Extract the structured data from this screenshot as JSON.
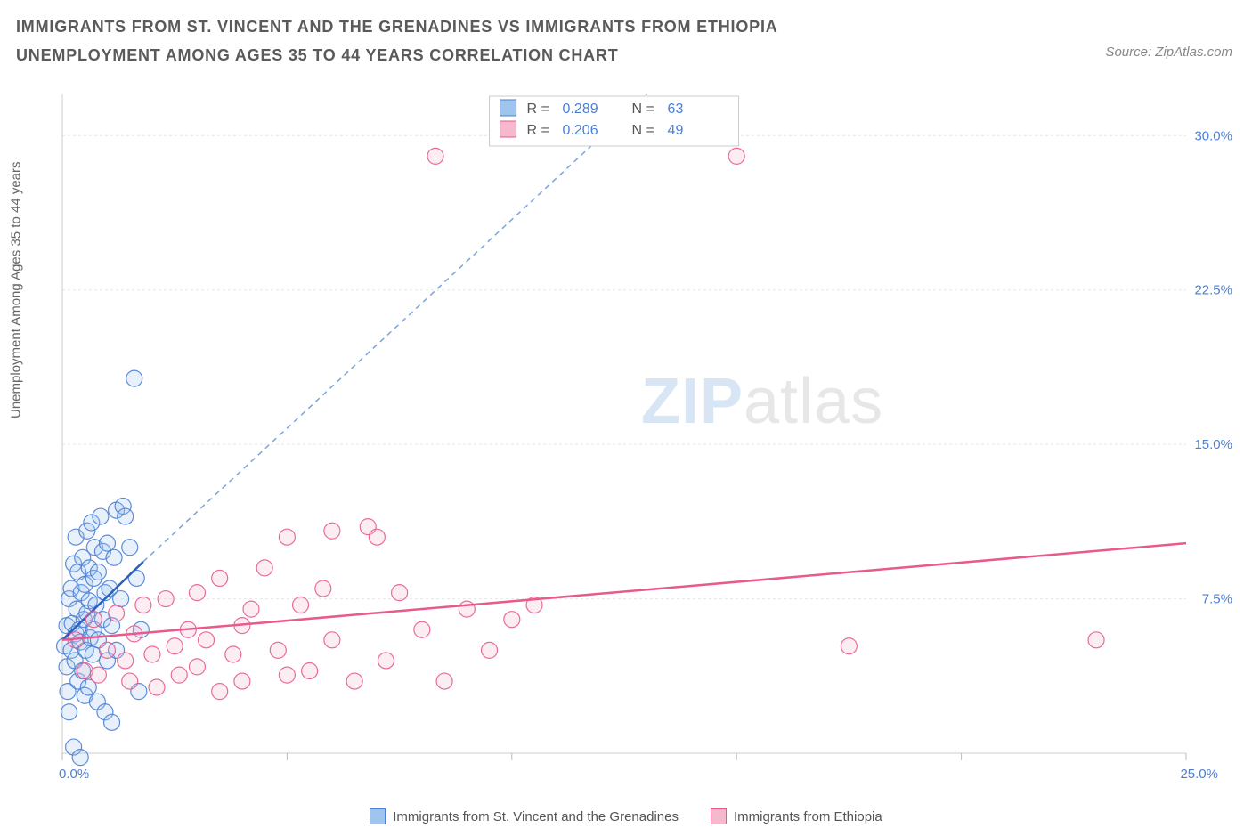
{
  "title": "IMMIGRANTS FROM ST. VINCENT AND THE GRENADINES VS IMMIGRANTS FROM ETHIOPIA UNEMPLOYMENT AMONG AGES 35 TO 44 YEARS CORRELATION CHART",
  "source": "Source: ZipAtlas.com",
  "y_axis_label": "Unemployment Among Ages 35 to 44 years",
  "watermark_a": "ZIP",
  "watermark_b": "atlas",
  "chart": {
    "type": "scatter",
    "background_color": "#ffffff",
    "grid_color": "#e6e6e6",
    "axis_color": "#cccccc",
    "tick_color": "#bbbbbb",
    "tick_label_color": "#4a7fd6",
    "tick_fontsize": 15,
    "xlim": [
      0,
      25
    ],
    "ylim": [
      0,
      32
    ],
    "x_ticks": [
      0,
      5,
      10,
      15,
      20,
      25
    ],
    "x_tick_labels": [
      "0.0%",
      "",
      "",
      "",
      "",
      "25.0%"
    ],
    "y_ticks": [
      7.5,
      15.0,
      22.5,
      30.0
    ],
    "y_tick_labels": [
      "7.5%",
      "15.0%",
      "22.5%",
      "30.0%"
    ],
    "marker_radius": 9,
    "marker_fill_opacity": 0.25,
    "marker_stroke_opacity": 0.9,
    "marker_stroke_width": 1.2,
    "series": [
      {
        "name": "Immigrants from St. Vincent and the Grenadines",
        "color_fill": "#9fc4ee",
        "color_stroke": "#4a7fd6",
        "trend_color": "#2b5fc0",
        "trend_dash_color": "#7ba3dd",
        "R": 0.289,
        "N": 63,
        "trend_solid": {
          "x1": 0.0,
          "y1": 5.5,
          "x2": 1.8,
          "y2": 9.3
        },
        "trend_dash": {
          "x1": 1.8,
          "y1": 9.3,
          "x2": 13.0,
          "y2": 32.0
        },
        "points": [
          [
            0.05,
            5.2
          ],
          [
            0.1,
            4.2
          ],
          [
            0.1,
            6.2
          ],
          [
            0.12,
            3.0
          ],
          [
            0.15,
            7.5
          ],
          [
            0.15,
            2.0
          ],
          [
            0.2,
            5.0
          ],
          [
            0.2,
            8.0
          ],
          [
            0.22,
            6.3
          ],
          [
            0.25,
            0.3
          ],
          [
            0.25,
            9.2
          ],
          [
            0.28,
            4.5
          ],
          [
            0.3,
            5.8
          ],
          [
            0.3,
            10.5
          ],
          [
            0.32,
            7.0
          ],
          [
            0.35,
            3.5
          ],
          [
            0.35,
            8.8
          ],
          [
            0.38,
            6.0
          ],
          [
            0.4,
            -0.2
          ],
          [
            0.4,
            5.4
          ],
          [
            0.42,
            7.8
          ],
          [
            0.45,
            4.0
          ],
          [
            0.45,
            9.5
          ],
          [
            0.48,
            6.5
          ],
          [
            0.5,
            2.8
          ],
          [
            0.5,
            8.2
          ],
          [
            0.52,
            5.0
          ],
          [
            0.55,
            10.8
          ],
          [
            0.55,
            6.8
          ],
          [
            0.58,
            3.2
          ],
          [
            0.6,
            7.4
          ],
          [
            0.6,
            9.0
          ],
          [
            0.62,
            5.6
          ],
          [
            0.65,
            11.2
          ],
          [
            0.68,
            4.8
          ],
          [
            0.7,
            8.5
          ],
          [
            0.7,
            6.0
          ],
          [
            0.72,
            10.0
          ],
          [
            0.75,
            7.2
          ],
          [
            0.78,
            2.5
          ],
          [
            0.8,
            8.8
          ],
          [
            0.8,
            5.5
          ],
          [
            0.85,
            11.5
          ],
          [
            0.9,
            6.5
          ],
          [
            0.9,
            9.8
          ],
          [
            0.95,
            2.0
          ],
          [
            0.95,
            7.8
          ],
          [
            1.0,
            10.2
          ],
          [
            1.0,
            4.5
          ],
          [
            1.05,
            8.0
          ],
          [
            1.1,
            1.5
          ],
          [
            1.1,
            6.2
          ],
          [
            1.15,
            9.5
          ],
          [
            1.2,
            11.8
          ],
          [
            1.2,
            5.0
          ],
          [
            1.3,
            7.5
          ],
          [
            1.35,
            12.0
          ],
          [
            1.4,
            11.5
          ],
          [
            1.5,
            10.0
          ],
          [
            1.6,
            18.2
          ],
          [
            1.65,
            8.5
          ],
          [
            1.7,
            3.0
          ],
          [
            1.75,
            6.0
          ]
        ]
      },
      {
        "name": "Immigrants from Ethiopia",
        "color_fill": "#f5b8cc",
        "color_stroke": "#e85a8e",
        "trend_color": "#e85a8e",
        "R": 0.206,
        "N": 49,
        "trend_solid": {
          "x1": 0.0,
          "y1": 5.5,
          "x2": 25.0,
          "y2": 10.2
        },
        "points": [
          [
            0.3,
            5.5
          ],
          [
            0.5,
            4.0
          ],
          [
            0.7,
            6.5
          ],
          [
            0.8,
            3.8
          ],
          [
            1.0,
            5.0
          ],
          [
            1.2,
            6.8
          ],
          [
            1.4,
            4.5
          ],
          [
            1.5,
            3.5
          ],
          [
            1.6,
            5.8
          ],
          [
            1.8,
            7.2
          ],
          [
            2.0,
            4.8
          ],
          [
            2.1,
            3.2
          ],
          [
            2.3,
            7.5
          ],
          [
            2.5,
            5.2
          ],
          [
            2.6,
            3.8
          ],
          [
            2.8,
            6.0
          ],
          [
            3.0,
            4.2
          ],
          [
            3.0,
            7.8
          ],
          [
            3.2,
            5.5
          ],
          [
            3.5,
            3.0
          ],
          [
            3.5,
            8.5
          ],
          [
            3.8,
            4.8
          ],
          [
            4.0,
            6.2
          ],
          [
            4.0,
            3.5
          ],
          [
            4.2,
            7.0
          ],
          [
            4.5,
            9.0
          ],
          [
            4.8,
            5.0
          ],
          [
            5.0,
            3.8
          ],
          [
            5.0,
            10.5
          ],
          [
            5.3,
            7.2
          ],
          [
            5.5,
            4.0
          ],
          [
            5.8,
            8.0
          ],
          [
            6.0,
            5.5
          ],
          [
            6.0,
            10.8
          ],
          [
            6.5,
            3.5
          ],
          [
            6.8,
            11.0
          ],
          [
            7.0,
            10.5
          ],
          [
            7.2,
            4.5
          ],
          [
            7.5,
            7.8
          ],
          [
            8.0,
            6.0
          ],
          [
            8.3,
            29.0
          ],
          [
            8.5,
            3.5
          ],
          [
            9.0,
            7.0
          ],
          [
            9.5,
            5.0
          ],
          [
            10.0,
            6.5
          ],
          [
            10.5,
            7.2
          ],
          [
            15.0,
            29.0
          ],
          [
            17.5,
            5.2
          ],
          [
            23.0,
            5.5
          ]
        ]
      }
    ]
  },
  "stats_box": {
    "border_color": "#cccccc",
    "bg_color": "#ffffff",
    "label_color": "#555555",
    "value_color": "#4a7fd6",
    "fontsize": 16,
    "rows": [
      {
        "swatch_fill": "#9fc4ee",
        "swatch_stroke": "#4a7fd6",
        "R": "0.289",
        "N": "63"
      },
      {
        "swatch_fill": "#f5b8cc",
        "swatch_stroke": "#e85a8e",
        "R": "0.206",
        "N": "49"
      }
    ]
  },
  "bottom_legend": [
    {
      "swatch_fill": "#9fc4ee",
      "swatch_stroke": "#4a7fd6",
      "label": "Immigrants from St. Vincent and the Grenadines"
    },
    {
      "swatch_fill": "#f5b8cc",
      "swatch_stroke": "#e85a8e",
      "label": "Immigrants from Ethiopia"
    }
  ]
}
